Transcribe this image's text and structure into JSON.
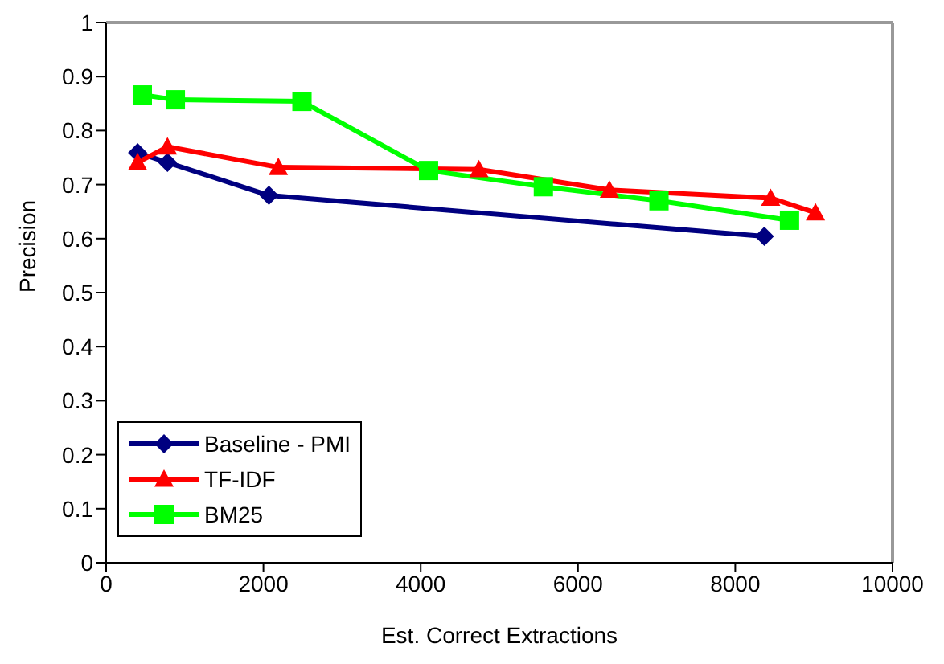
{
  "chart_data": {
    "type": "line",
    "xlabel": "Est. Correct Extractions",
    "ylabel": "Precision",
    "xlim": [
      0,
      10000
    ],
    "xticks": [
      0,
      2000,
      4000,
      6000,
      8000,
      10000
    ],
    "ylim": [
      0,
      1
    ],
    "yticks": [
      0,
      0.1,
      0.2,
      0.3,
      0.4,
      0.5,
      0.6,
      0.7,
      0.8,
      0.9,
      1
    ],
    "grid": false,
    "legend": "bottom left",
    "series": [
      {
        "name": "Baseline - PMI",
        "color": "#000080",
        "marker": "diamond",
        "x": [
          400,
          780,
          2070,
          8370
        ],
        "values": [
          0.759,
          0.741,
          0.68,
          0.604
        ]
      },
      {
        "name": "TF-IDF",
        "color": "#ff0000",
        "marker": "triangle",
        "x": [
          400,
          780,
          2190,
          4740,
          6400,
          8450,
          9020
        ],
        "values": [
          0.741,
          0.77,
          0.732,
          0.728,
          0.69,
          0.675,
          0.648
        ]
      },
      {
        "name": "BM25",
        "color": "#00ff00",
        "marker": "square",
        "x": [
          460,
          880,
          2490,
          4100,
          5560,
          7030,
          8690
        ],
        "values": [
          0.866,
          0.857,
          0.854,
          0.726,
          0.696,
          0.67,
          0.634
        ]
      }
    ]
  }
}
